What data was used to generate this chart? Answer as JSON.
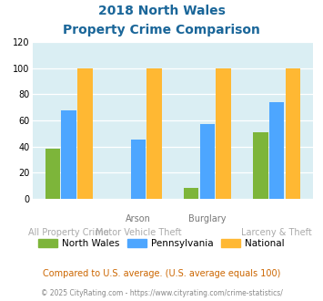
{
  "title_line1": "2018 North Wales",
  "title_line2": "Property Crime Comparison",
  "cat_labels_upper": [
    "",
    "Arson",
    "Burglary",
    ""
  ],
  "cat_labels_lower": [
    "All Property Crime",
    "Motor Vehicle Theft",
    "",
    "Larceny & Theft"
  ],
  "north_wales": [
    38,
    0,
    8,
    51
  ],
  "pennsylvania": [
    68,
    45,
    57,
    74
  ],
  "national": [
    100,
    100,
    100,
    100
  ],
  "color_nw": "#7db53a",
  "color_pa": "#4da6ff",
  "color_nat": "#ffb833",
  "title_color": "#1a6699",
  "bg_color": "#daeef3",
  "ylim": [
    0,
    120
  ],
  "yticks": [
    0,
    20,
    40,
    60,
    80,
    100,
    120
  ],
  "legend_labels": [
    "North Wales",
    "Pennsylvania",
    "National"
  ],
  "footnote1": "Compared to U.S. average. (U.S. average equals 100)",
  "footnote2": "© 2025 CityRating.com - https://www.cityrating.com/crime-statistics/"
}
